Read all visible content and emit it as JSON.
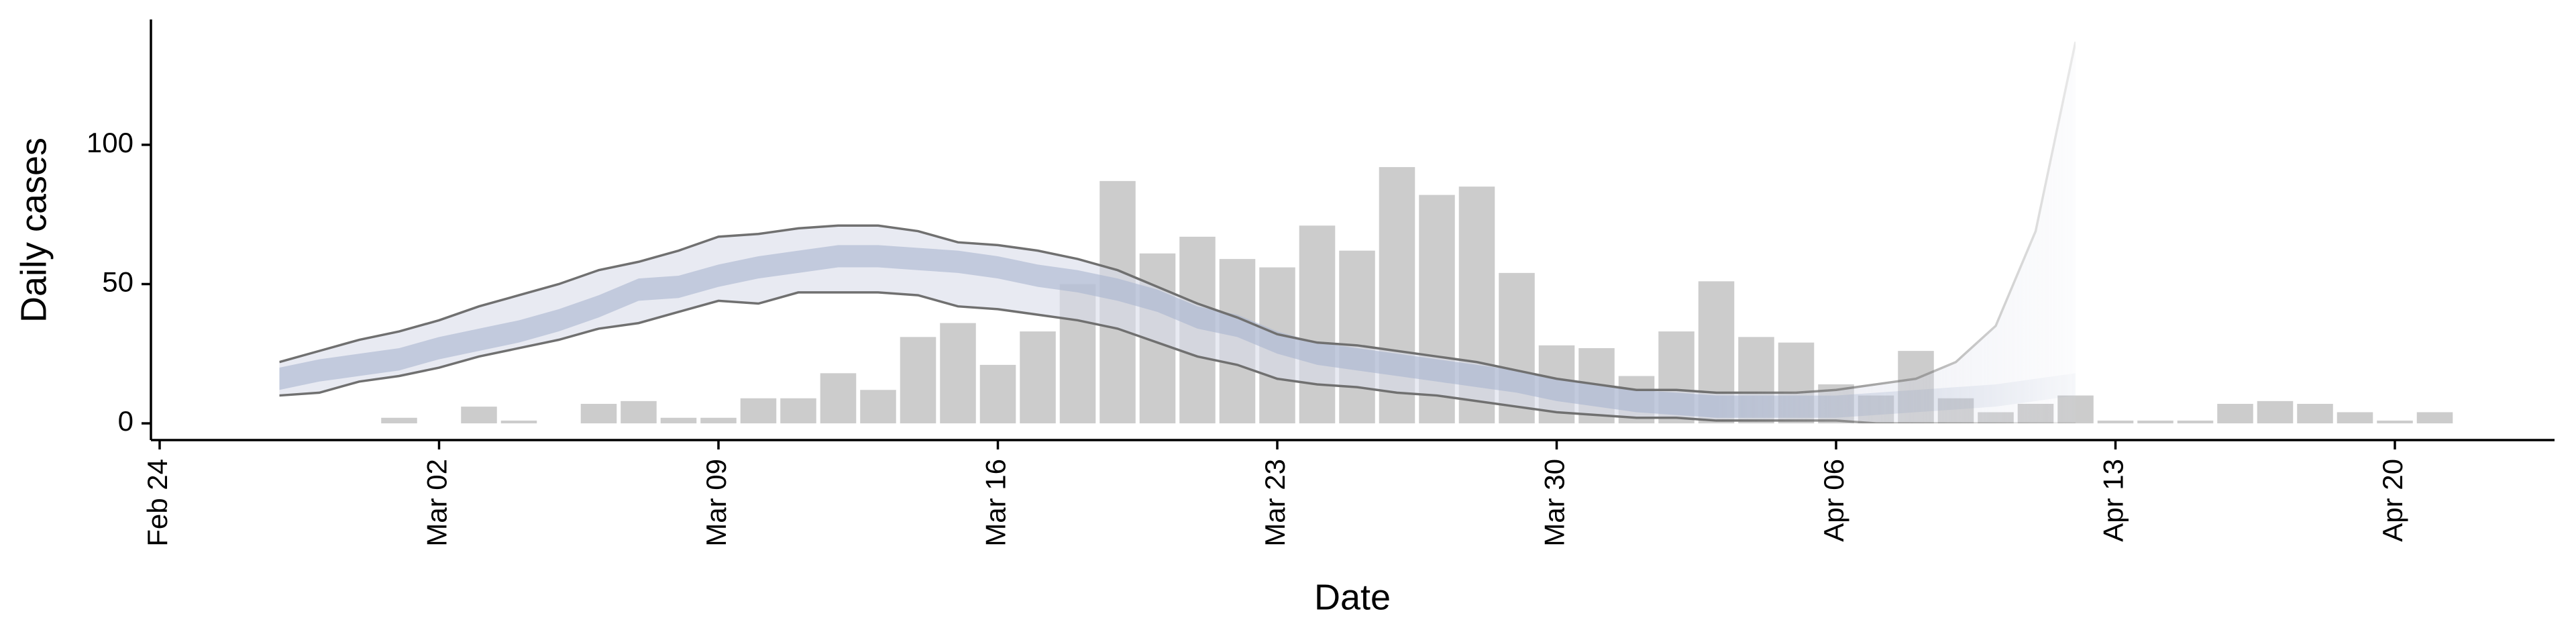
{
  "chart_data": {
    "type": "bar",
    "x_label": "Date",
    "y_label": "Daily cases",
    "x": [
      "Mar 01",
      "Mar 02",
      "Mar 03",
      "Mar 04",
      "Mar 05",
      "Mar 06",
      "Mar 07",
      "Mar 08",
      "Mar 09",
      "Mar 10",
      "Mar 11",
      "Mar 12",
      "Mar 13",
      "Mar 14",
      "Mar 15",
      "Mar 16",
      "Mar 17",
      "Mar 18",
      "Mar 19",
      "Mar 20",
      "Mar 21",
      "Mar 22",
      "Mar 23",
      "Mar 24",
      "Mar 25",
      "Mar 26",
      "Mar 27",
      "Mar 28",
      "Mar 29",
      "Mar 30",
      "Mar 31",
      "Apr 01",
      "Apr 02",
      "Apr 03",
      "Apr 04",
      "Apr 05",
      "Apr 06",
      "Apr 07",
      "Apr 08",
      "Apr 09",
      "Apr 10",
      "Apr 11",
      "Apr 12",
      "Apr 13",
      "Apr 14",
      "Apr 15",
      "Apr 16",
      "Apr 17",
      "Apr 18",
      "Apr 19",
      "Apr 20",
      "Apr 21"
    ],
    "values": [
      2,
      0,
      6,
      1,
      0,
      7,
      8,
      2,
      2,
      9,
      9,
      18,
      12,
      31,
      36,
      21,
      33,
      50,
      87,
      61,
      67,
      59,
      56,
      71,
      62,
      92,
      82,
      85,
      54,
      28,
      27,
      17,
      33,
      51,
      31,
      29,
      14,
      10,
      26,
      9,
      4,
      7,
      10,
      1,
      1,
      1,
      7,
      8,
      7,
      4,
      1,
      4
    ],
    "color": "#cccccc",
    "ribbon": {
      "x": [
        "Feb 27",
        "Feb 28",
        "Feb 29",
        "Mar 01",
        "Mar 02",
        "Mar 03",
        "Mar 04",
        "Mar 05",
        "Mar 06",
        "Mar 07",
        "Mar 08",
        "Mar 09",
        "Mar 10",
        "Mar 11",
        "Mar 12",
        "Mar 13",
        "Mar 14",
        "Mar 15",
        "Mar 16",
        "Mar 17",
        "Mar 18",
        "Mar 19",
        "Mar 20",
        "Mar 21",
        "Mar 22",
        "Mar 23",
        "Mar 24",
        "Mar 25",
        "Mar 26",
        "Mar 27",
        "Mar 28",
        "Mar 29",
        "Mar 30",
        "Mar 31",
        "Apr 01",
        "Apr 02",
        "Apr 03",
        "Apr 04",
        "Apr 05",
        "Apr 06",
        "Apr 07",
        "Apr 08",
        "Apr 09",
        "Apr 10",
        "Apr 11",
        "Apr 12"
      ],
      "outer_upper": [
        22,
        26,
        30,
        33,
        37,
        42,
        46,
        50,
        55,
        58,
        62,
        67,
        68,
        70,
        71,
        71,
        69,
        65,
        64,
        62,
        59,
        55,
        49,
        43,
        38,
        32,
        29,
        28,
        26,
        24,
        22,
        19,
        16,
        14,
        12,
        12,
        11,
        11,
        11,
        12,
        14,
        16,
        22,
        35,
        69,
        137
      ],
      "outer_lower": [
        10,
        11,
        15,
        17,
        20,
        24,
        27,
        30,
        34,
        36,
        40,
        44,
        43,
        47,
        47,
        47,
        46,
        42,
        41,
        39,
        37,
        34,
        29,
        24,
        21,
        16,
        14,
        13,
        11,
        10,
        8,
        6,
        4,
        3,
        2,
        2,
        1,
        1,
        1,
        1,
        0,
        0,
        0,
        0,
        0,
        0
      ],
      "inner_upper": [
        20,
        23,
        25,
        27,
        31,
        34,
        37,
        41,
        46,
        52,
        53,
        57,
        60,
        62,
        64,
        64,
        63,
        62,
        60,
        57,
        55,
        52,
        48,
        42,
        39,
        33,
        29,
        27,
        25,
        23,
        21,
        19,
        16,
        14,
        12,
        11,
        10,
        10,
        10,
        10,
        11,
        12,
        13,
        14,
        16,
        18
      ],
      "inner_lower": [
        12,
        15,
        17,
        19,
        23,
        26,
        29,
        33,
        38,
        44,
        45,
        49,
        52,
        54,
        56,
        56,
        55,
        54,
        52,
        49,
        47,
        44,
        40,
        34,
        31,
        25,
        21,
        19,
        17,
        15,
        13,
        11,
        8,
        6,
        4,
        3,
        2,
        2,
        2,
        2,
        3,
        4,
        5,
        6,
        8,
        10
      ],
      "outer_color": "#d9dcea",
      "inner_color": "#a9b4cf",
      "line_color": "#707070"
    },
    "xlim": [
      "Feb 24",
      "Apr 24"
    ],
    "xticks": [
      "Feb 24",
      "Mar 02",
      "Mar 09",
      "Mar 16",
      "Mar 23",
      "Mar 30",
      "Apr 06",
      "Apr 13",
      "Apr 20"
    ],
    "ylim": [
      -6,
      145
    ],
    "yticks": [
      0,
      50,
      100
    ],
    "grid": false
  }
}
